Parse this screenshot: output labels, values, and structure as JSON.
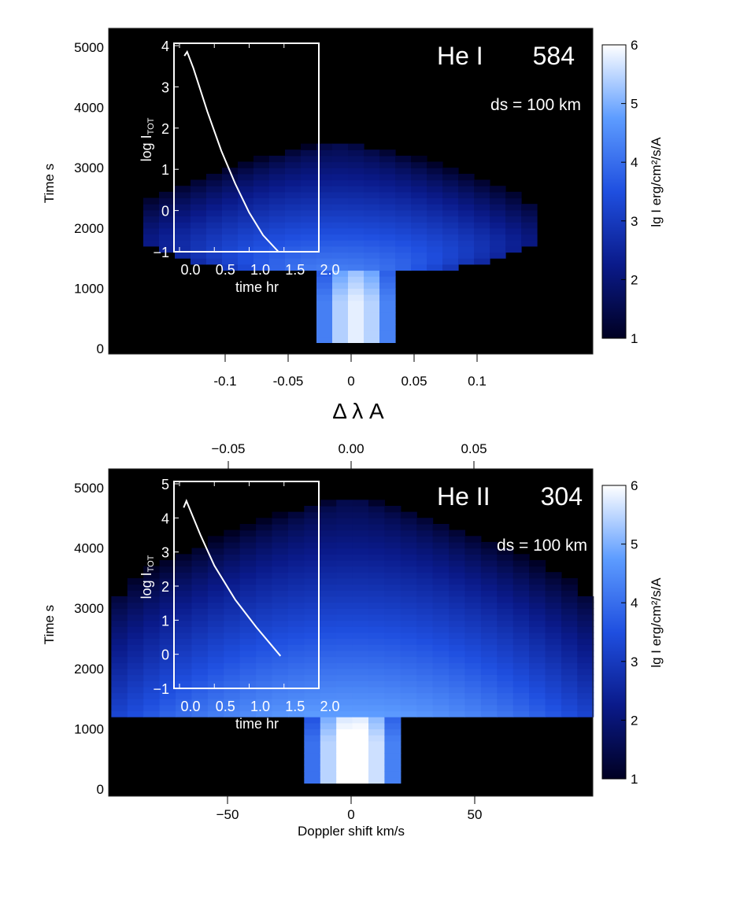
{
  "chart_data": [
    {
      "type": "heatmap",
      "title": "He I",
      "wavelength": "584",
      "annotation": "ds = 100 km",
      "xlabel": "Δ λ A",
      "ylabel": "Time s",
      "xlim": [
        -0.19,
        0.19
      ],
      "ylim": [
        0,
        5000
      ],
      "xticks": [
        "-0.1",
        "-0.05",
        "0",
        "0.05",
        "0.1"
      ],
      "xtick_values": [
        -0.1,
        -0.05,
        0,
        0.05,
        0.1
      ],
      "yticks": [
        "0",
        "1000",
        "2000",
        "3000",
        "4000",
        "5000"
      ],
      "ytick_values": [
        0,
        1000,
        2000,
        3000,
        4000,
        5000
      ],
      "colorbar": {
        "label": "lg I erg/cm²/s/A",
        "range": [
          1,
          6
        ],
        "ticks": [
          "1",
          "2",
          "3",
          "4",
          "5",
          "6"
        ],
        "colors": [
          "#000022",
          "#0a1a8a",
          "#1f4fe0",
          "#5d9cff",
          "#ffffff"
        ]
      },
      "inset": {
        "type": "line",
        "xlabel": "time  hr",
        "ylabel": "log I",
        "ylabel_sub": "TOT",
        "xlim": [
          0,
          2
        ],
        "ylim": [
          -1,
          4
        ],
        "xticks": [
          "0.0",
          "0.5",
          "1.0",
          "1.5",
          "2.0"
        ],
        "yticks": [
          "−1",
          "0",
          "1",
          "2",
          "3",
          "4"
        ],
        "x": [
          0.07,
          0.11,
          0.2,
          0.4,
          0.6,
          0.8,
          1.0,
          1.2,
          1.42
        ],
        "y": [
          3.75,
          3.85,
          3.45,
          2.4,
          1.45,
          0.65,
          -0.05,
          -0.6,
          -1.0
        ]
      }
    },
    {
      "type": "heatmap",
      "title": "He II",
      "wavelength": "304",
      "annotation": "ds = 100 km",
      "xlabel": "Doppler shift km/s",
      "ylabel": "Time s",
      "xlim": [
        -97,
        97
      ],
      "ylim": [
        0,
        5000
      ],
      "xticks": [
        "−50",
        "0",
        "50"
      ],
      "xtick_values": [
        -50,
        0,
        50
      ],
      "top_xticks": [
        "−0.05",
        "0.00",
        "0.05"
      ],
      "top_xtick_values": [
        -0.05,
        0,
        0.05
      ],
      "yticks": [
        "0",
        "1000",
        "2000",
        "3000",
        "4000",
        "5000"
      ],
      "ytick_values": [
        0,
        1000,
        2000,
        3000,
        4000,
        5000
      ],
      "colorbar": {
        "label": "lg I erg/cm²/s/A",
        "range": [
          1,
          6
        ],
        "ticks": [
          "1",
          "2",
          "3",
          "4",
          "5",
          "6"
        ],
        "colors": [
          "#000022",
          "#0a1a8a",
          "#1f4fe0",
          "#5d9cff",
          "#ffffff"
        ]
      },
      "inset": {
        "type": "line",
        "xlabel": "time  hr",
        "ylabel": "log I",
        "ylabel_sub": "TOT",
        "xlim": [
          0,
          2
        ],
        "ylim": [
          -1,
          5
        ],
        "xticks": [
          "0.0",
          "0.5",
          "1.0",
          "1.5",
          "2.0"
        ],
        "yticks": [
          "−1",
          "0",
          "1",
          "2",
          "3",
          "4",
          "5"
        ],
        "x": [
          0.06,
          0.1,
          0.3,
          0.5,
          0.8,
          1.1,
          1.45
        ],
        "y": [
          4.3,
          4.5,
          3.5,
          2.6,
          1.6,
          0.8,
          -0.05
        ]
      }
    }
  ]
}
